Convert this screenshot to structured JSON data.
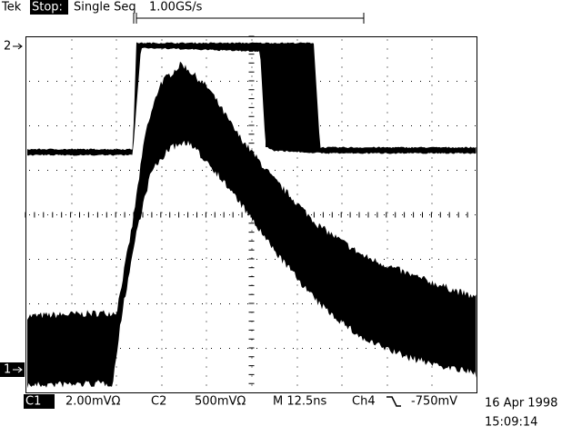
{
  "header": {
    "brand": "Tek",
    "state": "Stop:",
    "mode": "Single Seq",
    "sample_rate": "1.00GS/s"
  },
  "markers": {
    "ch2": "2",
    "ch1": "1"
  },
  "footer": {
    "ch1_label": "C1",
    "ch1_scale": "2.00mVΩ",
    "ch2_label": "C2",
    "ch2_scale": "500mVΩ",
    "timebase": "M 12.5ns",
    "trigger_source": "Ch4",
    "trigger_level": "-750mV",
    "date": "16 Apr 1998",
    "time": "15:09:14"
  }
}
